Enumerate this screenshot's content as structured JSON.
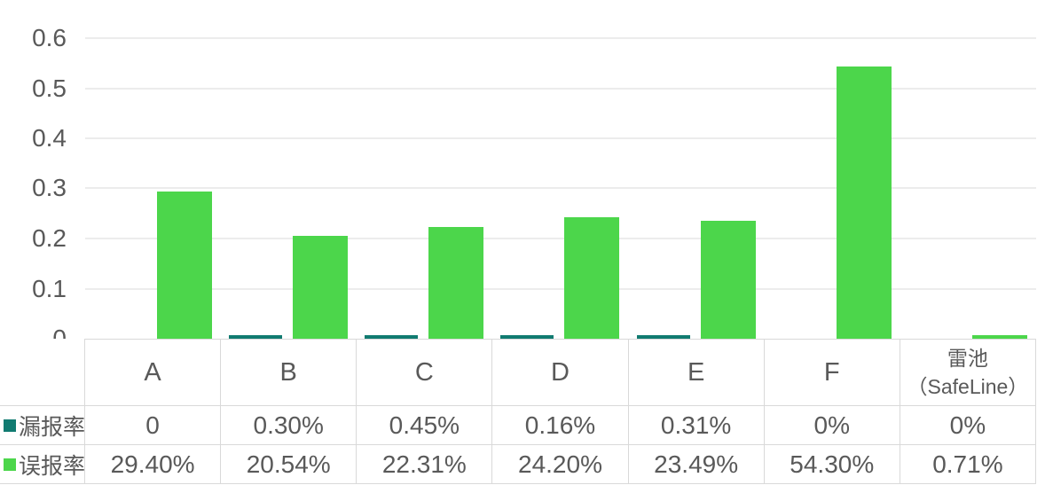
{
  "chart_data": {
    "type": "bar",
    "title": "",
    "xlabel": "",
    "ylabel": "",
    "grid": true,
    "legend_position": "data-table-left",
    "categories": [
      "A",
      "B",
      "C",
      "D",
      "E",
      "F",
      "雷池（SafeLine）"
    ],
    "category_display_lines": [
      [
        "A"
      ],
      [
        "B"
      ],
      [
        "C"
      ],
      [
        "D"
      ],
      [
        "E"
      ],
      [
        "F"
      ],
      [
        "雷池",
        "（SafeLine）"
      ]
    ],
    "series": [
      {
        "name": "漏报率",
        "color": "#117B71",
        "values_percent": [
          0,
          0.3,
          0.45,
          0.16,
          0.31,
          0,
          0
        ],
        "display_values": [
          "0",
          "0.30%",
          "0.45%",
          "0.16%",
          "0.31%",
          "0%",
          "0%"
        ]
      },
      {
        "name": "误报率",
        "color": "#4CD64B",
        "values_percent": [
          29.4,
          20.54,
          22.31,
          24.2,
          23.49,
          54.3,
          0.71
        ],
        "display_values": [
          "29.40%",
          "20.54%",
          "22.31%",
          "24.20%",
          "23.49%",
          "54.30%",
          "0.71%"
        ]
      }
    ],
    "y_axis": {
      "min": 0,
      "max": 0.6,
      "step": 0.1,
      "tick_labels": [
        "0",
        "0.1",
        "0.2",
        "0.3",
        "0.4",
        "0.5",
        "0.6"
      ]
    },
    "note_value_scale": "bar heights are percent/100 plotted on 0-0.6 axis"
  },
  "colors": {
    "background": "#FFFFFF",
    "text": "#595959",
    "gridline": "#ECECEC",
    "table_border": "#D9D9D9",
    "series_miss_rate": "#117B71",
    "series_false_positive_rate": "#4CD64B"
  }
}
